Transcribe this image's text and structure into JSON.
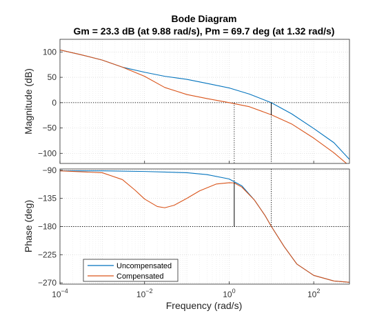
{
  "chart_data": {
    "type": "line",
    "title": "Bode Diagram",
    "subtitle": "Gm = 23.3 dB (at 9.88 rad/s),  Pm = 69.7 deg (at 1.32 rad/s)",
    "xlabel": "Frequency  (rad/s)",
    "x_scale": "log",
    "xlim": [
      0.0001,
      700
    ],
    "xticks": [
      {
        "value": 0.0001,
        "base": "10",
        "exp": "-4"
      },
      {
        "value": 0.01,
        "base": "10",
        "exp": "-2"
      },
      {
        "value": 1,
        "base": "10",
        "exp": "0"
      },
      {
        "value": 100,
        "base": "10",
        "exp": "2"
      }
    ],
    "grid": true,
    "legend_position": "bottom-left",
    "colors": {
      "uncompensated": "#0072BD",
      "compensated": "#D95319"
    },
    "panels": [
      {
        "name": "magnitude",
        "ylabel": "Magnitude (dB)",
        "ylim": [
          -120,
          125
        ],
        "yticks": [
          -100,
          -50,
          0,
          50,
          100
        ],
        "series": [
          {
            "name": "Uncompensated",
            "x": [
              0.0001,
              0.0003,
              0.001,
              0.003,
              0.01,
              0.03,
              0.1,
              0.3,
              1,
              3,
              9.88,
              30,
              100,
              300,
              700
            ],
            "values": [
              104,
              95,
              84,
              70,
              60,
              52,
              46,
              38,
              29,
              17,
              0,
              -22,
              -51,
              -79,
              -112
            ]
          },
          {
            "name": "Compensated",
            "x": [
              0.0001,
              0.0003,
              0.001,
              0.003,
              0.01,
              0.03,
              0.1,
              0.3,
              1,
              3,
              10,
              30,
              100,
              300,
              700
            ],
            "values": [
              104,
              95,
              84,
              70,
              52,
              30,
              16,
              8,
              0,
              -8,
              -24,
              -42,
              -70,
              -99,
              -125
            ]
          }
        ],
        "markers": [
          {
            "label": "Gm",
            "x": 9.88,
            "from": 0,
            "to": -23.3
          }
        ]
      },
      {
        "name": "phase",
        "ylabel": "Phase (deg)",
        "ylim": [
          -272,
          -88
        ],
        "yticks": [
          -270,
          -225,
          -180,
          -135,
          -90
        ],
        "series": [
          {
            "name": "Uncompensated",
            "x": [
              0.0001,
              0.001,
              0.01,
              0.1,
              0.3,
              1,
              2,
              4,
              7,
              10,
              20,
              40,
              100,
              300,
              700
            ],
            "values": [
              -91,
              -91,
              -92,
              -94,
              -97,
              -104,
              -115,
              -138,
              -162,
              -180,
              -212,
              -240,
              -258,
              -267,
              -269
            ]
          },
          {
            "name": "Compensated",
            "x": [
              0.0001,
              0.001,
              0.003,
              0.006,
              0.01,
              0.02,
              0.03,
              0.05,
              0.1,
              0.2,
              0.5,
              1,
              1.32,
              2,
              4,
              7,
              10,
              20,
              40,
              100,
              300,
              700
            ],
            "values": [
              -91,
              -94,
              -105,
              -122,
              -136,
              -148,
              -150,
              -146,
              -135,
              -123,
              -112,
              -110,
              -110.3,
              -117,
              -138,
              -162,
              -180,
              -212,
              -240,
              -258,
              -267,
              -269
            ]
          }
        ],
        "markers": [
          {
            "label": "Pm",
            "x": 1.32,
            "from": -180,
            "to": -110.3
          }
        ]
      }
    ]
  }
}
